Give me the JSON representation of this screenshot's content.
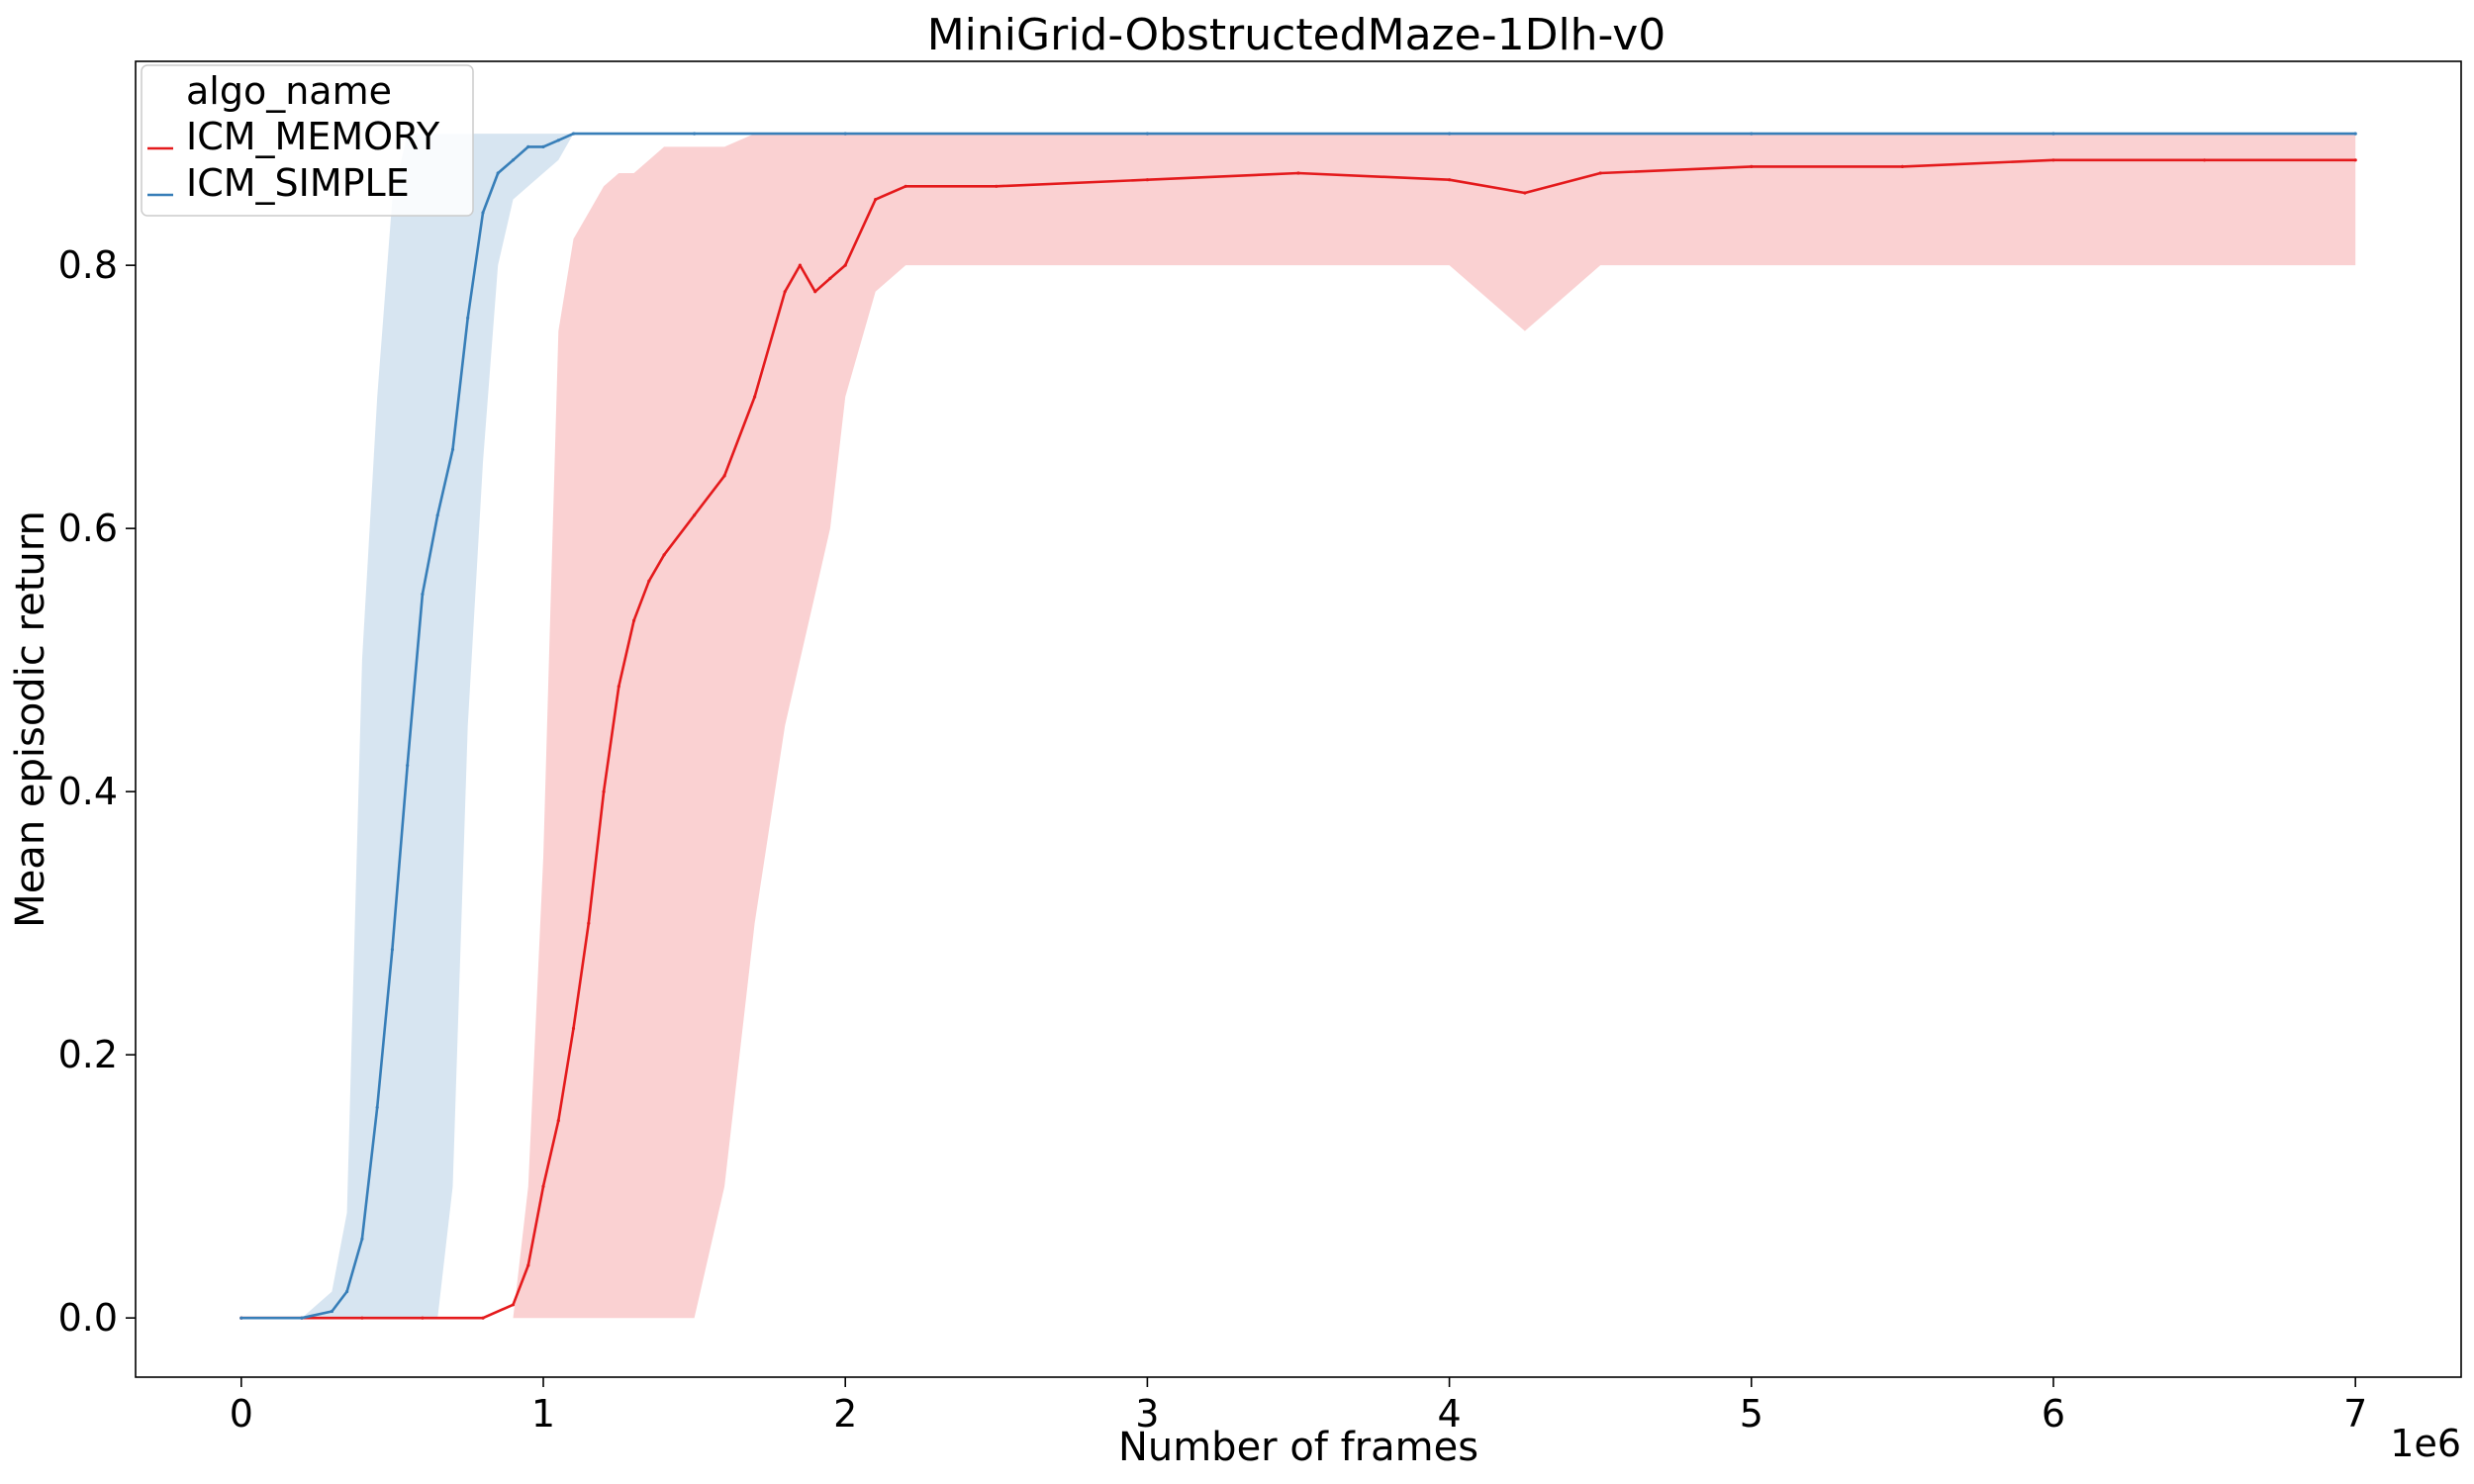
{
  "chart_data": {
    "type": "line",
    "title": "MiniGrid-ObstructedMaze-1Dlh-v0",
    "xlabel": "Number of frames",
    "ylabel": "Mean episodic return",
    "x_offset_text": "1e6",
    "xlim": [
      -350000,
      7350000
    ],
    "ylim": [
      -0.045,
      0.955
    ],
    "xticks": [
      0,
      1000000,
      2000000,
      3000000,
      4000000,
      5000000,
      6000000,
      7000000
    ],
    "xtick_labels": [
      "0",
      "1",
      "2",
      "3",
      "4",
      "5",
      "6",
      "7"
    ],
    "yticks": [
      0.0,
      0.2,
      0.4,
      0.6,
      0.8
    ],
    "ytick_labels": [
      "0.0",
      "0.2",
      "0.4",
      "0.6",
      "0.8"
    ],
    "grid": false,
    "legend": {
      "title": "algo_name",
      "position": "top-left",
      "entries": [
        "ICM_MEMORY",
        "ICM_SIMPLE"
      ]
    },
    "band_type": "confidence band (shaded)",
    "series": [
      {
        "name": "ICM_MEMORY",
        "color": "#e41a1c",
        "x": [
          0,
          200000,
          400000,
          600000,
          800000,
          900000,
          950000,
          1000000,
          1050000,
          1100000,
          1150000,
          1200000,
          1250000,
          1300000,
          1350000,
          1400000,
          1500000,
          1600000,
          1700000,
          1800000,
          1850000,
          1900000,
          1950000,
          2000000,
          2100000,
          2200000,
          2500000,
          3000000,
          3500000,
          4000000,
          4250000,
          4500000,
          5000000,
          5500000,
          6000000,
          6500000,
          7000000
        ],
        "y": [
          0.0,
          0.0,
          0.0,
          0.0,
          0.0,
          0.01,
          0.04,
          0.1,
          0.15,
          0.22,
          0.3,
          0.4,
          0.48,
          0.53,
          0.56,
          0.58,
          0.61,
          0.64,
          0.7,
          0.78,
          0.8,
          0.78,
          0.79,
          0.8,
          0.85,
          0.86,
          0.86,
          0.865,
          0.87,
          0.865,
          0.855,
          0.87,
          0.875,
          0.875,
          0.88,
          0.88,
          0.88
        ],
        "lower": [
          0.0,
          0.0,
          0.0,
          0.0,
          0.0,
          0.0,
          0.0,
          0.0,
          0.0,
          0.0,
          0.0,
          0.0,
          0.0,
          0.0,
          0.0,
          0.0,
          0.0,
          0.1,
          0.3,
          0.45,
          0.5,
          0.55,
          0.6,
          0.7,
          0.78,
          0.8,
          0.8,
          0.8,
          0.8,
          0.8,
          0.75,
          0.8,
          0.8,
          0.8,
          0.8,
          0.8,
          0.8
        ],
        "upper": [
          0.0,
          0.0,
          0.0,
          0.0,
          0.0,
          0.0,
          0.1,
          0.35,
          0.75,
          0.82,
          0.84,
          0.86,
          0.87,
          0.87,
          0.88,
          0.89,
          0.89,
          0.89,
          0.9,
          0.9,
          0.9,
          0.9,
          0.9,
          0.9,
          0.9,
          0.9,
          0.9,
          0.9,
          0.9,
          0.9,
          0.9,
          0.9,
          0.9,
          0.9,
          0.9,
          0.9,
          0.9
        ]
      },
      {
        "name": "ICM_SIMPLE",
        "color": "#377eb8",
        "x": [
          0,
          200000,
          300000,
          350000,
          400000,
          450000,
          500000,
          550000,
          600000,
          650000,
          700000,
          750000,
          800000,
          850000,
          900000,
          950000,
          1000000,
          1050000,
          1100000,
          1500000,
          2000000,
          3000000,
          4000000,
          5000000,
          6000000,
          7000000
        ],
        "y": [
          0.0,
          0.0,
          0.005,
          0.02,
          0.06,
          0.16,
          0.28,
          0.42,
          0.55,
          0.61,
          0.66,
          0.76,
          0.84,
          0.87,
          0.88,
          0.89,
          0.89,
          0.895,
          0.9,
          0.9,
          0.9,
          0.9,
          0.9,
          0.9,
          0.9,
          0.9
        ],
        "lower": [
          0.0,
          0.0,
          0.0,
          0.0,
          0.0,
          0.0,
          0.0,
          0.0,
          0.0,
          0.0,
          0.1,
          0.45,
          0.65,
          0.8,
          0.85,
          0.86,
          0.87,
          0.88,
          0.9,
          0.9,
          0.9,
          0.9,
          0.9,
          0.9,
          0.9,
          0.9
        ],
        "upper": [
          0.0,
          0.0,
          0.02,
          0.08,
          0.5,
          0.7,
          0.85,
          0.9,
          0.9,
          0.9,
          0.9,
          0.9,
          0.9,
          0.9,
          0.9,
          0.9,
          0.9,
          0.9,
          0.9,
          0.9,
          0.9,
          0.9,
          0.9,
          0.9,
          0.9,
          0.9
        ]
      }
    ]
  }
}
